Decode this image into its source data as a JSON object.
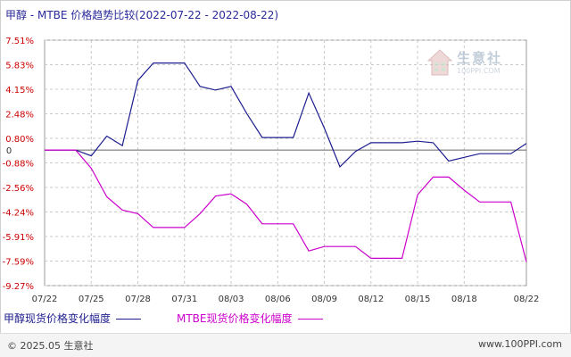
{
  "chart_data": {
    "type": "line",
    "title": "甲醇 - MTBE 价格趋势比较(2022-07-22 - 2022-08-22)",
    "x": [
      "07/22",
      "07/23",
      "07/24",
      "07/25",
      "07/26",
      "07/27",
      "07/28",
      "07/29",
      "07/30",
      "07/31",
      "08/01",
      "08/02",
      "08/03",
      "08/04",
      "08/05",
      "08/06",
      "08/07",
      "08/08",
      "08/09",
      "08/10",
      "08/11",
      "08/12",
      "08/13",
      "08/14",
      "08/15",
      "08/16",
      "08/17",
      "08/18",
      "08/19",
      "08/20",
      "08/21",
      "08/22"
    ],
    "xticks": [
      "07/22",
      "07/25",
      "07/28",
      "07/31",
      "08/03",
      "08/06",
      "08/09",
      "08/12",
      "08/15",
      "08/18",
      "08/22"
    ],
    "yticks": [
      "7.51%",
      "5.83%",
      "4.15%",
      "2.48%",
      "0.80%",
      "-0.88%",
      "-2.56%",
      "-4.24%",
      "-5.91%",
      "-7.59%",
      "-9.27%"
    ],
    "ylim": [
      -9.27,
      7.51
    ],
    "baseline_label": "0",
    "grid": true,
    "series": [
      {
        "name": "甲醇现货价格变化幅度",
        "color": "#1d1d8f",
        "values": [
          0,
          0,
          0,
          -0.4,
          0.95,
          0.3,
          4.75,
          5.95,
          5.95,
          5.95,
          4.35,
          4.1,
          4.35,
          2.5,
          0.85,
          0.85,
          0.85,
          3.9,
          1.5,
          -1.15,
          -0.1,
          0.5,
          0.5,
          0.5,
          0.6,
          0.5,
          -0.75,
          -0.5,
          -0.25,
          -0.25,
          -0.25,
          0.45
        ]
      },
      {
        "name": "MTBE现货价格变化幅度",
        "color": "#cc00cc",
        "values": [
          0,
          0,
          0,
          -1.25,
          -3.2,
          -4.1,
          -4.35,
          -5.3,
          -5.3,
          -5.3,
          -4.35,
          -3.15,
          -3.0,
          -3.7,
          -5.05,
          -5.05,
          -5.05,
          -6.9,
          -6.6,
          -6.6,
          -6.6,
          -7.4,
          -7.4,
          -7.4,
          -3.05,
          -1.85,
          -1.85,
          -2.75,
          -3.55,
          -3.55,
          -3.55,
          -7.65
        ]
      }
    ],
    "legend_position": "bottom-left"
  },
  "watermark": {
    "name": "生意社",
    "url": "100PPI.COM"
  },
  "footer": {
    "copyright": "© 2025.05 生意社",
    "site": "www.100PPI.com"
  }
}
